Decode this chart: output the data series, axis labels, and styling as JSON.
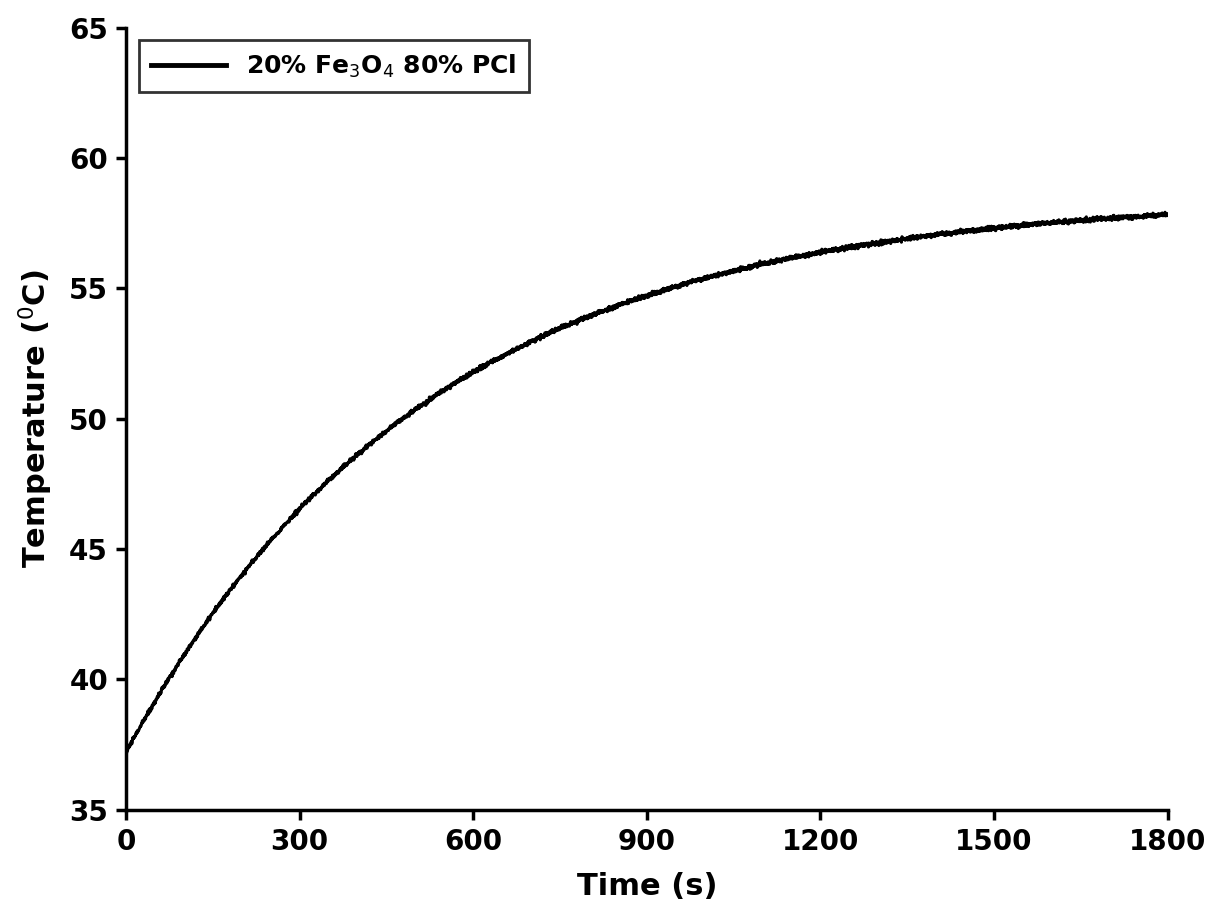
{
  "title": "",
  "xlabel": "Time (s)",
  "ylabel": "Temperature ($^{0}$C)",
  "legend_label": "20% Fe$_3$O$_4$ 80% PCl",
  "xlim": [
    0,
    1800
  ],
  "ylim": [
    35,
    65
  ],
  "xticks": [
    0,
    300,
    600,
    900,
    1200,
    1500,
    1800
  ],
  "yticks": [
    35,
    40,
    45,
    50,
    55,
    60,
    65
  ],
  "line_color": "#000000",
  "line_width": 2.2,
  "background_color": "#ffffff",
  "T0": 37.2,
  "T_inf": 58.5,
  "tau": 520,
  "noise_amplitude": 0.04
}
